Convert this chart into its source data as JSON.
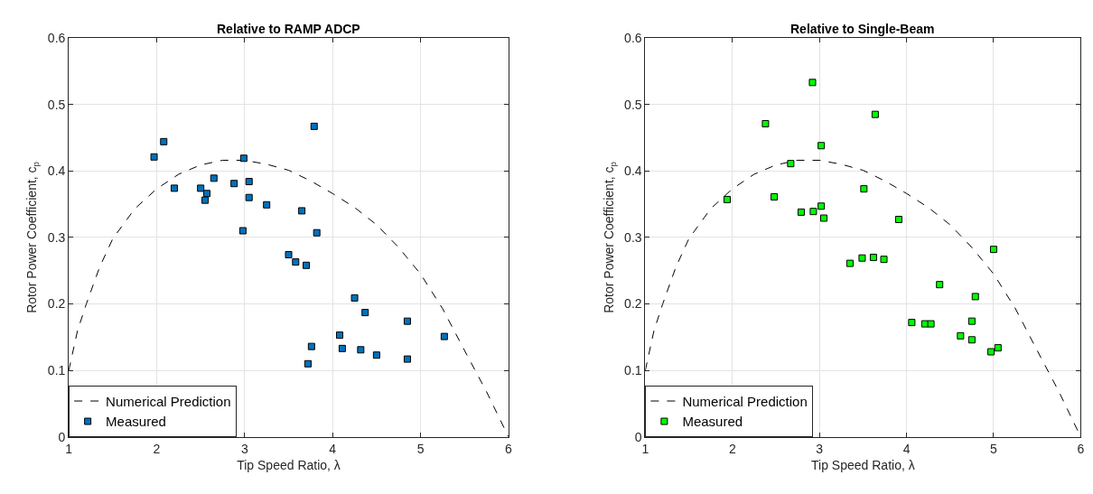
{
  "chart_data": [
    {
      "type": "scatter",
      "title": "Relative to RAMP ADCP",
      "xlabel": "Tip Speed Ratio, λ",
      "ylabel": "Rotor Power Coefficient, c$_{p}$",
      "xlim": [
        1,
        6
      ],
      "xticks": [
        1,
        2,
        3,
        4,
        5,
        6
      ],
      "ylim": [
        0,
        0.6
      ],
      "yticks": [
        0,
        0.1,
        0.2,
        0.3,
        0.4,
        0.5,
        0.6
      ],
      "grid": true,
      "legend": "bottom left",
      "series": [
        {
          "name": "Numerical Prediction",
          "type": "line",
          "line_style": "dashed",
          "marker": "none",
          "color": "#000000",
          "x": [
            1,
            1.1,
            1.2,
            1.35,
            1.5,
            1.75,
            2,
            2.25,
            2.5,
            2.75,
            3,
            3.25,
            3.5,
            3.75,
            4,
            4.25,
            4.5,
            4.75,
            5,
            5.25,
            5.5,
            5.75,
            6
          ],
          "values": [
            0.1,
            0.16,
            0.2,
            0.255,
            0.298,
            0.343,
            0.373,
            0.395,
            0.409,
            0.416,
            0.416,
            0.41,
            0.401,
            0.385,
            0.366,
            0.345,
            0.319,
            0.285,
            0.245,
            0.193,
            0.13,
            0.068,
            0.0
          ]
        },
        {
          "name": "Measured",
          "marker": "square",
          "color": "#0072bd",
          "x": [
            1.97,
            2.08,
            2.2,
            2.5,
            2.57,
            2.55,
            2.65,
            2.88,
            2.99,
            3.05,
            3.05,
            3.25,
            2.98,
            3.65,
            3.79,
            3.82,
            3.5,
            3.58,
            3.7,
            4.25,
            4.37,
            4.85,
            5.27,
            4.08,
            3.76,
            4.11,
            4.32,
            4.5,
            3.72,
            4.85
          ],
          "values": [
            0.421,
            0.444,
            0.374,
            0.374,
            0.366,
            0.356,
            0.389,
            0.381,
            0.419,
            0.384,
            0.36,
            0.349,
            0.31,
            0.34,
            0.467,
            0.307,
            0.274,
            0.263,
            0.258,
            0.209,
            0.187,
            0.174,
            0.151,
            0.153,
            0.136,
            0.133,
            0.131,
            0.123,
            0.11,
            0.117
          ]
        }
      ]
    },
    {
      "type": "scatter",
      "title": "Relative to Single-Beam",
      "xlabel": "Tip Speed Ratio, λ",
      "ylabel": "Rotor Power Coefficient, c$_{p}$",
      "xlim": [
        1,
        6
      ],
      "xticks": [
        1,
        2,
        3,
        4,
        5,
        6
      ],
      "ylim": [
        0,
        0.6
      ],
      "yticks": [
        0,
        0.1,
        0.2,
        0.3,
        0.4,
        0.5,
        0.6
      ],
      "grid": true,
      "legend": "bottom left",
      "series": [
        {
          "name": "Numerical Prediction",
          "type": "line",
          "line_style": "dashed",
          "marker": "none",
          "color": "#000000",
          "x": [
            1,
            1.1,
            1.2,
            1.35,
            1.5,
            1.75,
            2,
            2.25,
            2.5,
            2.75,
            3,
            3.25,
            3.5,
            3.75,
            4,
            4.25,
            4.5,
            4.75,
            5,
            5.25,
            5.5,
            5.75,
            6
          ],
          "values": [
            0.1,
            0.16,
            0.2,
            0.255,
            0.298,
            0.343,
            0.373,
            0.395,
            0.409,
            0.416,
            0.416,
            0.41,
            0.401,
            0.385,
            0.366,
            0.345,
            0.319,
            0.285,
            0.245,
            0.193,
            0.13,
            0.068,
            0.0
          ]
        },
        {
          "name": "Measured",
          "marker": "square",
          "color": "#00ff00",
          "x": [
            1.94,
            2.38,
            2.92,
            3.64,
            3.02,
            2.67,
            2.48,
            2.79,
            2.93,
            3.02,
            3.05,
            3.51,
            3.91,
            3.35,
            3.49,
            3.62,
            3.74,
            5.0,
            4.38,
            4.79,
            4.06,
            4.21,
            4.28,
            4.75,
            4.62,
            4.75,
            4.97,
            5.05
          ],
          "values": [
            0.357,
            0.471,
            0.533,
            0.485,
            0.438,
            0.411,
            0.361,
            0.338,
            0.339,
            0.347,
            0.329,
            0.373,
            0.327,
            0.261,
            0.269,
            0.27,
            0.267,
            0.282,
            0.229,
            0.211,
            0.172,
            0.17,
            0.17,
            0.174,
            0.152,
            0.146,
            0.128,
            0.134
          ]
        }
      ]
    }
  ]
}
